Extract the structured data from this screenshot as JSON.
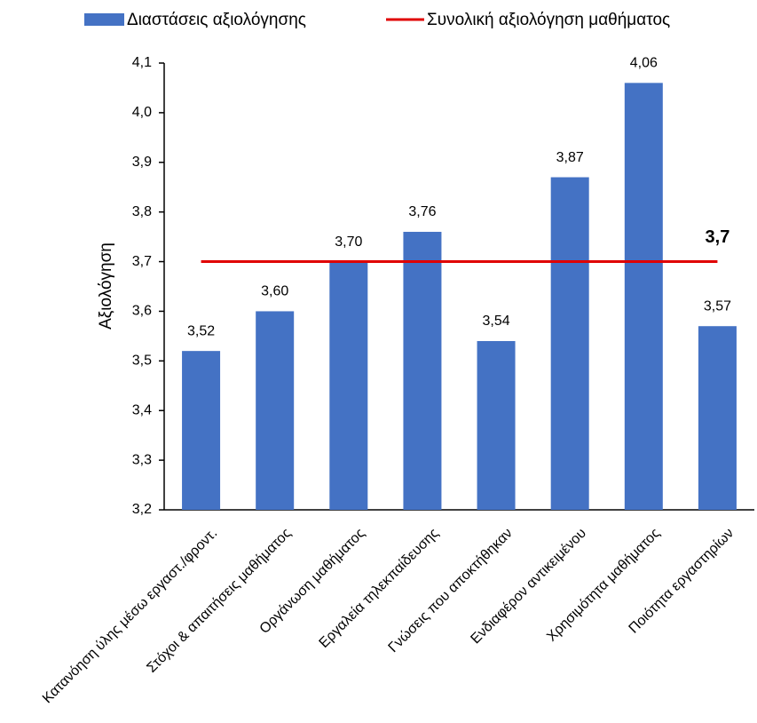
{
  "chart_data": {
    "type": "bar",
    "y_label": "Αξιολόγηση",
    "categories": [
      "Κατανόηση ύλης μέσω εργαστ./φροντ.",
      "Στόχοι & απαιτήσεις μαθήματος",
      "Οργάνωση μαθήματος",
      "Εργαλεία τηλεκπαίδευσης",
      "Γνώσεις που αποκτήθηκαν",
      "Ενδιαφέρον αντικειμένου",
      "Χρησιμότητα μαθήματος",
      "Ποιότητα εργαστηρίων"
    ],
    "series": [
      {
        "name": "Διαστάσεις αξιολόγησης",
        "color": "#4472c4",
        "values": [
          3.52,
          3.6,
          3.7,
          3.76,
          3.54,
          3.87,
          4.06,
          3.57
        ],
        "value_labels": [
          "3,52",
          "3,60",
          "3,70",
          "3,76",
          "3,54",
          "3,87",
          "4,06",
          "3,57"
        ]
      }
    ],
    "reference_line": {
      "name": "Συνολική αξιολόγηση μαθήματος",
      "color": "#e00000",
      "value": 3.7,
      "value_label": "3,7"
    },
    "ylim": [
      3.2,
      4.1
    ],
    "yticks": [
      {
        "value": 3.2,
        "label": "3,2"
      },
      {
        "value": 3.3,
        "label": "3,3"
      },
      {
        "value": 3.4,
        "label": "3,4"
      },
      {
        "value": 3.5,
        "label": "3,5"
      },
      {
        "value": 3.6,
        "label": "3,6"
      },
      {
        "value": 3.7,
        "label": "3,7"
      },
      {
        "value": 3.8,
        "label": "3,8"
      },
      {
        "value": 3.9,
        "label": "3,9"
      },
      {
        "value": 4.0,
        "label": "4,0"
      },
      {
        "value": 4.1,
        "label": "4,1"
      }
    ]
  }
}
